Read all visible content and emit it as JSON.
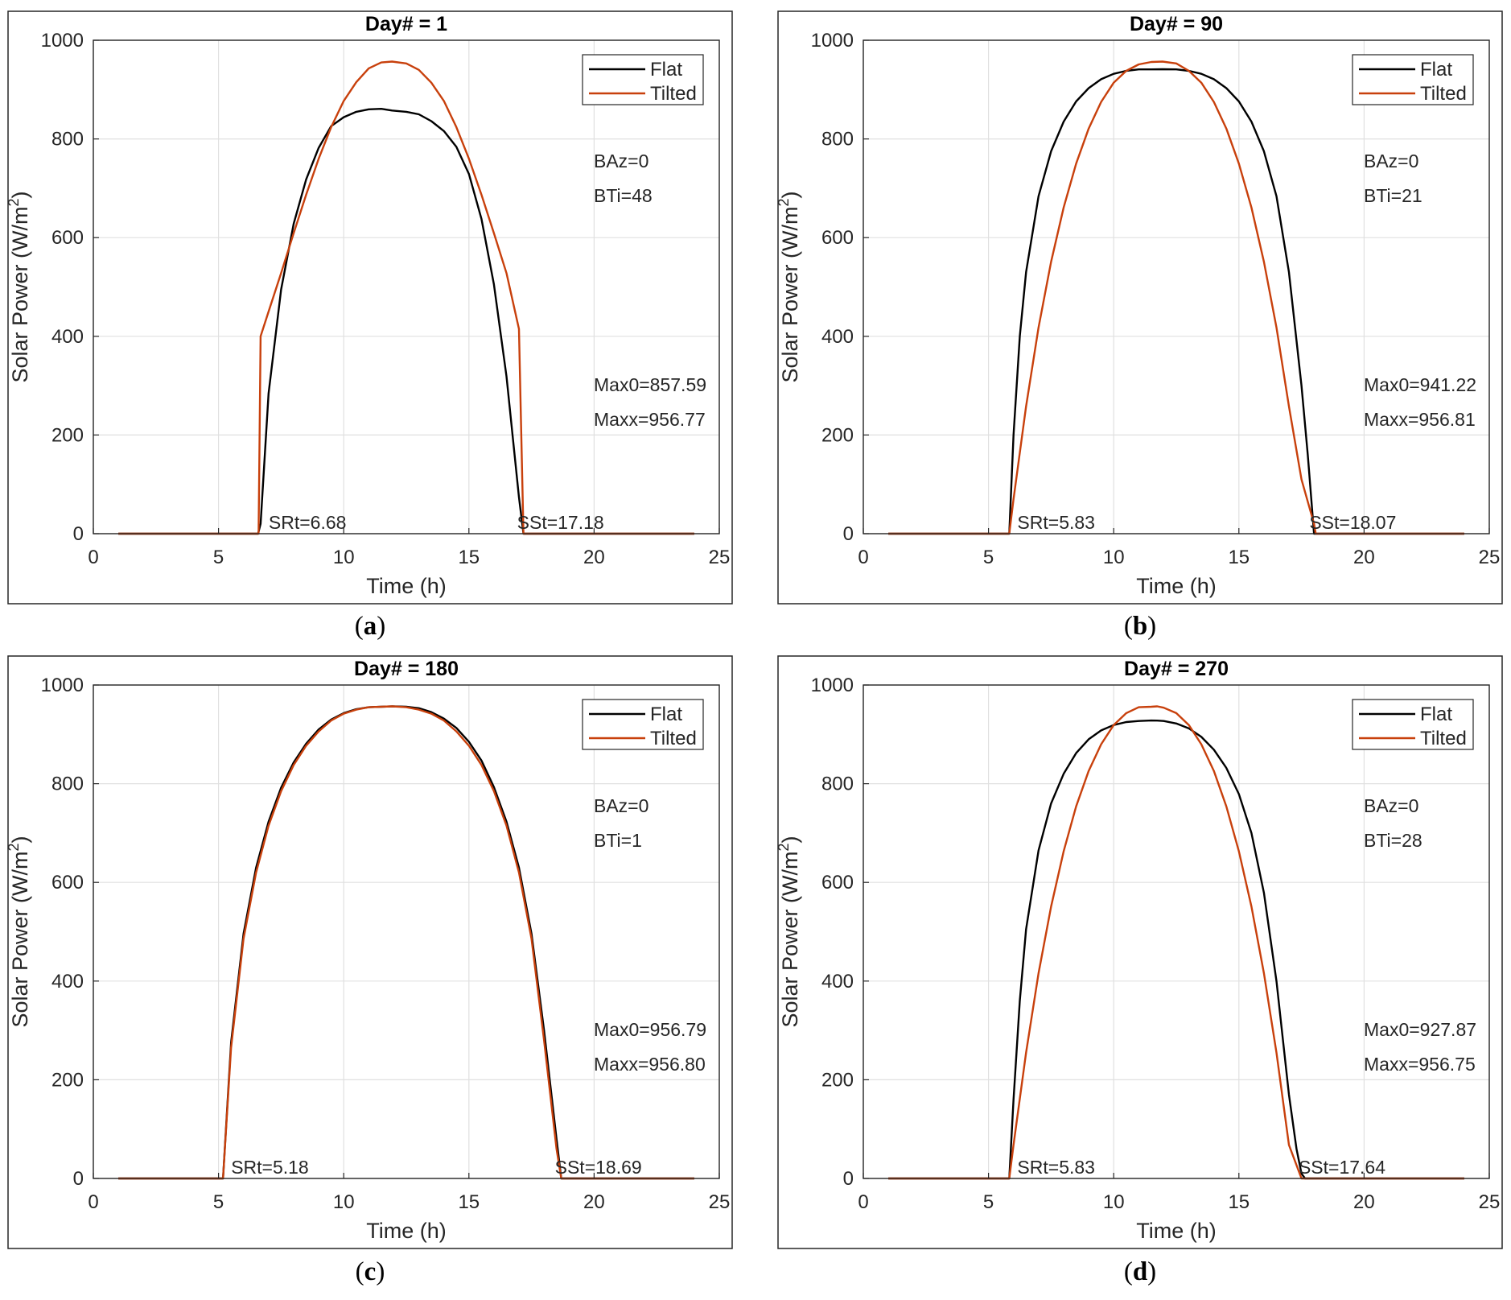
{
  "figure": {
    "series_names": [
      "Flat",
      "Tilted"
    ],
    "colors": {
      "flat": "#000000",
      "tilted": "#c8400c",
      "grid": "#e0e0e0",
      "axis": "#262626",
      "frame": "#262626"
    },
    "axes_labels": {
      "x": "Time (h)",
      "y": "Solar Power (W/m",
      "y_sup": "2",
      "y_close": ")"
    }
  },
  "chart_data": [
    {
      "type": "line",
      "panel": "a",
      "caption_letter": "a",
      "title": "Day# = 1",
      "xlabel": "Time (h)",
      "ylabel": "Solar Power (W/m2)",
      "xlim": [
        0,
        25
      ],
      "ylim": [
        0,
        1000
      ],
      "xticks": [
        0,
        5,
        10,
        15,
        20,
        25
      ],
      "yticks": [
        0,
        200,
        400,
        600,
        800,
        1000
      ],
      "grid": true,
      "legend": "top-right",
      "annotations": {
        "baz": "BAz=0",
        "bti": "BTi=48",
        "max0": "Max0=857.59",
        "maxx": "Maxx=956.77",
        "srt": "SRt=6.68",
        "sst": "SSt=17.18"
      },
      "sunrise": 6.68,
      "sunset": 17.18,
      "series": [
        {
          "name": "Flat",
          "color": "#000000",
          "x": [
            1,
            6.58,
            6.68,
            7.0,
            7.5,
            8.0,
            8.5,
            9.0,
            9.5,
            10.0,
            10.5,
            11.0,
            11.5,
            11.93,
            12.5,
            13.0,
            13.5,
            14.0,
            14.5,
            15.0,
            15.5,
            16.0,
            16.5,
            17.0,
            17.18,
            17.3,
            24
          ],
          "y": [
            0,
            0,
            20,
            284,
            495,
            628,
            718,
            782,
            826,
            844,
            855,
            860,
            861,
            857.59,
            855,
            850,
            836,
            816,
            784,
            729,
            638,
            505,
            319,
            74,
            0,
            0,
            0
          ]
        },
        {
          "name": "Tilted",
          "color": "#c8400c",
          "x": [
            1,
            6.6,
            6.68,
            7.0,
            7.5,
            8.0,
            8.5,
            9.0,
            9.5,
            10.0,
            10.5,
            11.0,
            11.5,
            11.93,
            12.5,
            13.0,
            13.5,
            14.0,
            14.5,
            15.0,
            15.5,
            16.0,
            16.5,
            17.0,
            17.18,
            17.3,
            24
          ],
          "y": [
            0,
            0,
            400,
            450,
            528,
            609,
            687,
            760,
            824,
            877,
            915,
            943,
            955,
            956.77,
            953,
            940,
            914,
            877,
            824,
            760,
            687,
            609,
            528,
            415,
            0,
            0,
            0
          ]
        }
      ]
    },
    {
      "type": "line",
      "panel": "b",
      "caption_letter": "b",
      "title": "Day# = 90",
      "xlabel": "Time (h)",
      "ylabel": "Solar Power (W/m2)",
      "xlim": [
        0,
        25
      ],
      "ylim": [
        0,
        1000
      ],
      "xticks": [
        0,
        5,
        10,
        15,
        20,
        25
      ],
      "yticks": [
        0,
        200,
        400,
        600,
        800,
        1000
      ],
      "grid": true,
      "legend": "top-right",
      "annotations": {
        "baz": "BAz=0",
        "bti": "BTi=21",
        "max0": "Max0=941.22",
        "maxx": "Maxx=956.81",
        "srt": "SRt=5.83",
        "sst": "SSt=18.07"
      },
      "sunrise": 5.83,
      "sunset": 18.07,
      "series": [
        {
          "name": "Flat",
          "color": "#000000",
          "x": [
            1,
            5.8,
            5.83,
            6.0,
            6.25,
            6.5,
            7.0,
            7.5,
            8.0,
            8.5,
            9.0,
            9.5,
            10.0,
            10.5,
            11.0,
            11.5,
            11.95,
            12.5,
            13.0,
            13.5,
            14.0,
            14.5,
            15.0,
            15.5,
            16.0,
            16.5,
            17.0,
            17.5,
            17.75,
            18.0,
            18.07,
            24
          ],
          "y": [
            0,
            0,
            0,
            200,
            400,
            530,
            684,
            775,
            835,
            876,
            903,
            921,
            932,
            938,
            941,
            941,
            941.22,
            941,
            938,
            932,
            921,
            903,
            876,
            835,
            775,
            684,
            530,
            300,
            160,
            0,
            0,
            0
          ]
        },
        {
          "name": "Tilted",
          "color": "#c8400c",
          "x": [
            1,
            5.8,
            5.83,
            6.0,
            6.5,
            7.0,
            7.5,
            8.0,
            8.5,
            9.0,
            9.5,
            10.0,
            10.5,
            11.0,
            11.5,
            11.95,
            12.5,
            13.0,
            13.5,
            14.0,
            14.5,
            15.0,
            15.5,
            16.0,
            16.5,
            17.0,
            17.5,
            18.0,
            18.07,
            24
          ],
          "y": [
            0,
            0,
            0,
            70,
            258,
            418,
            551,
            661,
            750,
            821,
            875,
            914,
            938,
            951,
            956,
            956.81,
            953,
            938,
            914,
            875,
            821,
            750,
            661,
            551,
            418,
            258,
            110,
            20,
            0,
            0
          ]
        }
      ]
    },
    {
      "type": "line",
      "panel": "c",
      "caption_letter": "c",
      "title": "Day# = 180",
      "xlabel": "Time (h)",
      "ylabel": "Solar Power (W/m2)",
      "xlim": [
        0,
        25
      ],
      "ylim": [
        0,
        1000
      ],
      "xticks": [
        0,
        5,
        10,
        15,
        20,
        25
      ],
      "yticks": [
        0,
        200,
        400,
        600,
        800,
        1000
      ],
      "grid": true,
      "legend": "top-right",
      "annotations": {
        "baz": "BAz=0",
        "bti": "BTi=1",
        "max0": "Max0=956.79",
        "maxx": "Maxx=956.80",
        "srt": "SRt=5.18",
        "sst": "SSt=18.69"
      },
      "sunrise": 5.18,
      "sunset": 18.69,
      "series": [
        {
          "name": "Flat",
          "color": "#000000",
          "x": [
            1,
            5.15,
            5.18,
            5.5,
            6.0,
            6.5,
            7.0,
            7.5,
            8.0,
            8.5,
            9.0,
            9.5,
            10.0,
            10.5,
            11.0,
            11.5,
            11.94,
            12.5,
            13.0,
            13.5,
            14.0,
            14.5,
            15.0,
            15.5,
            16.0,
            16.5,
            17.0,
            17.5,
            18.0,
            18.5,
            18.69,
            24
          ],
          "y": [
            0,
            0,
            0,
            275,
            496,
            630,
            723,
            792,
            843,
            881,
            910,
            930,
            943,
            951,
            955,
            956,
            956.79,
            956,
            953,
            945,
            932,
            913,
            885,
            847,
            793,
            723,
            630,
            496,
            300,
            80,
            0,
            0
          ]
        },
        {
          "name": "Tilted",
          "color": "#c8400c",
          "x": [
            1,
            5.15,
            5.18,
            5.5,
            6.0,
            6.5,
            7.0,
            7.5,
            8.0,
            8.5,
            9.0,
            9.5,
            10.0,
            10.5,
            11.0,
            11.5,
            11.94,
            12.5,
            13.0,
            13.5,
            14.0,
            14.5,
            15.0,
            15.5,
            16.0,
            16.5,
            17.0,
            17.5,
            18.0,
            18.5,
            18.69,
            24
          ],
          "y": [
            0,
            0,
            0,
            265,
            486,
            620,
            715,
            785,
            838,
            877,
            906,
            928,
            942,
            950,
            955,
            956,
            956.8,
            955,
            950,
            942,
            928,
            906,
            877,
            838,
            785,
            715,
            620,
            486,
            280,
            60,
            0,
            0
          ]
        }
      ]
    },
    {
      "type": "line",
      "panel": "d",
      "caption_letter": "d",
      "title": "Day# = 270",
      "xlabel": "Time (h)",
      "ylabel": "Solar Power (W/m2)",
      "xlim": [
        0,
        25
      ],
      "ylim": [
        0,
        1000
      ],
      "xticks": [
        0,
        5,
        10,
        15,
        20,
        25
      ],
      "yticks": [
        0,
        200,
        400,
        600,
        800,
        1000
      ],
      "grid": true,
      "legend": "top-right",
      "annotations": {
        "baz": "BAz=0",
        "bti": "BTi=28",
        "max0": "Max0=927.87",
        "maxx": "Maxx=956.75",
        "srt": "SRt=5.83",
        "sst": "SSt=17.64"
      },
      "sunrise": 5.83,
      "sunset": 17.64,
      "series": [
        {
          "name": "Flat",
          "color": "#000000",
          "x": [
            1,
            5.8,
            5.83,
            6.0,
            6.25,
            6.5,
            7.0,
            7.5,
            8.0,
            8.5,
            9.0,
            9.5,
            10.0,
            10.5,
            11.0,
            11.5,
            11.74,
            12.0,
            12.5,
            13.0,
            13.5,
            14.0,
            14.5,
            15.0,
            15.5,
            16.0,
            16.5,
            17.0,
            17.3,
            17.5,
            17.64,
            24
          ],
          "y": [
            0,
            0,
            0,
            160,
            360,
            505,
            665,
            760,
            820,
            862,
            890,
            908,
            919,
            925,
            927,
            928,
            927.87,
            927,
            922,
            912,
            895,
            869,
            832,
            779,
            700,
            579,
            400,
            170,
            60,
            10,
            0,
            0
          ]
        },
        {
          "name": "Tilted",
          "color": "#c8400c",
          "x": [
            1,
            5.8,
            5.83,
            6.0,
            6.5,
            7.0,
            7.5,
            8.0,
            8.5,
            9.0,
            9.5,
            10.0,
            10.5,
            11.0,
            11.5,
            11.74,
            12.0,
            12.5,
            13.0,
            13.5,
            14.0,
            14.5,
            15.0,
            15.5,
            16.0,
            16.5,
            17.0,
            17.5,
            17.64,
            24
          ],
          "y": [
            0,
            0,
            0,
            68,
            255,
            416,
            551,
            663,
            754,
            826,
            880,
            919,
            943,
            955,
            956,
            956.75,
            954,
            943,
            919,
            880,
            826,
            754,
            663,
            551,
            416,
            255,
            68,
            0,
            0,
            0
          ]
        }
      ]
    }
  ]
}
